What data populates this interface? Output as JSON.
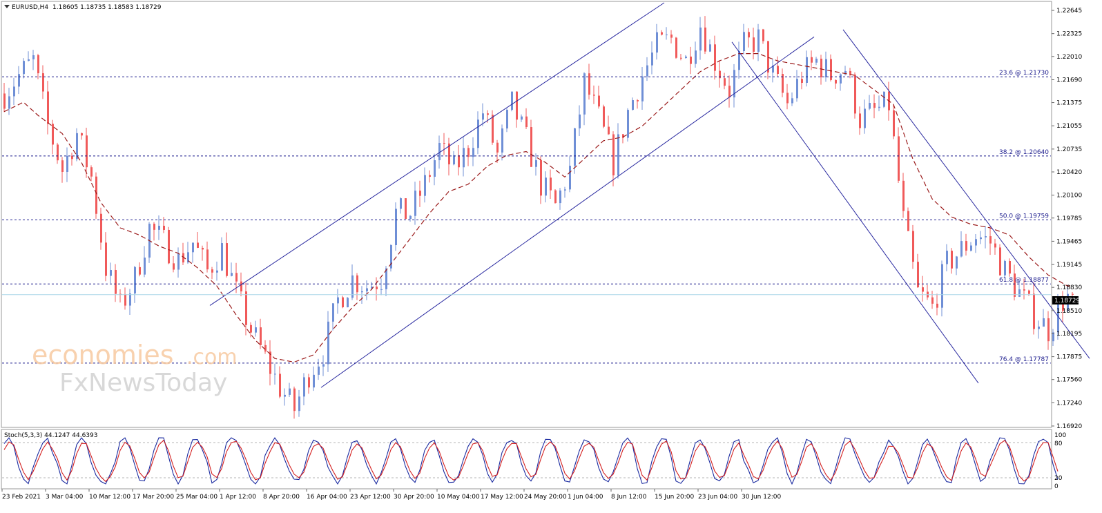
{
  "header": {
    "symbol": "EURUSD,H4",
    "ohlc": "1.18605 1.18735 1.18583 1.18729",
    "menu_icon": "triangle-down-icon"
  },
  "watermark": {
    "line1": "economies",
    "line1_suffix": ".com",
    "line2": "FxNewsToday"
  },
  "stoch": {
    "label": "Stoch(5,3,3) 44.1247 44.6393",
    "levels": [
      "100",
      "80",
      "20",
      "0"
    ]
  },
  "colors": {
    "bull": "#6f8fd6",
    "bear": "#f05a5a",
    "ma": "#9b1b1b",
    "channel": "#2a2aa0",
    "level": "#1a1a8c",
    "current": "#a9d6e8",
    "k": "#1a2aa0",
    "d": "#d42020"
  },
  "chart_data": {
    "type": "candlestick",
    "symbol": "EURUSD",
    "timeframe": "H4",
    "last_price": "1.18729",
    "ylim": [
      1.1692,
      1.2275
    ],
    "y_ticks": [
      "1.22645",
      "1.22325",
      "1.22010",
      "1.21690",
      "1.21375",
      "1.21055",
      "1.20735",
      "1.20420",
      "1.20100",
      "1.19785",
      "1.19465",
      "1.19145",
      "1.18830",
      "1.18510",
      "1.18195",
      "1.17875",
      "1.17560",
      "1.17240",
      "1.16920"
    ],
    "x_ticks": [
      "23 Feb 2021",
      "3 Mar 04:00",
      "10 Mar 12:00",
      "17 Mar 20:00",
      "25 Mar 04:00",
      "1 Apr 12:00",
      "8 Apr 20:00",
      "16 Apr 04:00",
      "23 Apr 12:00",
      "30 Apr 20:00",
      "10 May 04:00",
      "17 May 12:00",
      "24 May 20:00",
      "1 Jun 04:00",
      "8 Jun 12:00",
      "15 Jun 20:00",
      "23 Jun 04:00",
      "30 Jun 12:00"
    ],
    "fib_levels": [
      {
        "label": "23.6 @ 1.21730",
        "value": 1.2173
      },
      {
        "label": "38.2 @ 1.20640",
        "value": 1.2064
      },
      {
        "label": "50.0 @ 1.19759",
        "value": 1.19759
      },
      {
        "label": "61.8 @ 1.18877",
        "value": 1.18877
      },
      {
        "label": "76.4 @ 1.17787",
        "value": 1.17787
      }
    ],
    "price_path_bars": [
      [
        0,
        1.215
      ],
      [
        3,
        1.2175
      ],
      [
        6,
        1.2195
      ],
      [
        9,
        1.2105
      ],
      [
        12,
        1.2045
      ],
      [
        15,
        1.2095
      ],
      [
        18,
        1.2035
      ],
      [
        21,
        1.191
      ],
      [
        24,
        1.1855
      ],
      [
        27,
        1.1895
      ],
      [
        30,
        1.1965
      ],
      [
        33,
        1.1945
      ],
      [
        36,
        1.192
      ],
      [
        39,
        1.1945
      ],
      [
        42,
        1.1905
      ],
      [
        45,
        1.1935
      ],
      [
        48,
        1.1875
      ],
      [
        51,
        1.1825
      ],
      [
        54,
        1.1785
      ],
      [
        57,
        1.1745
      ],
      [
        60,
        1.1715
      ],
      [
        63,
        1.1765
      ],
      [
        66,
        1.1795
      ],
      [
        69,
        1.1865
      ],
      [
        72,
        1.1895
      ],
      [
        75,
        1.1885
      ],
      [
        78,
        1.1895
      ],
      [
        81,
        1.1985
      ],
      [
        84,
        1.1985
      ],
      [
        87,
        1.2025
      ],
      [
        90,
        1.2075
      ],
      [
        93,
        1.2045
      ],
      [
        96,
        1.2075
      ],
      [
        99,
        1.2125
      ],
      [
        102,
        1.2065
      ],
      [
        105,
        1.2135
      ],
      [
        108,
        1.2085
      ],
      [
        111,
        1.2025
      ],
      [
        114,
        1.1995
      ],
      [
        117,
        1.2045
      ],
      [
        120,
        1.2165
      ],
      [
        123,
        1.2115
      ],
      [
        126,
        1.2055
      ],
      [
        129,
        1.2125
      ],
      [
        132,
        1.2175
      ],
      [
        135,
        1.2215
      ],
      [
        138,
        1.2225
      ],
      [
        141,
        1.2195
      ],
      [
        144,
        1.2245
      ],
      [
        147,
        1.2195
      ],
      [
        150,
        1.2155
      ],
      [
        153,
        1.2215
      ],
      [
        156,
        1.2225
      ],
      [
        159,
        1.2175
      ],
      [
        162,
        1.2135
      ],
      [
        165,
        1.2175
      ],
      [
        168,
        1.2195
      ],
      [
        171,
        1.2175
      ],
      [
        174,
        1.2185
      ],
      [
        177,
        1.2115
      ],
      [
        180,
        1.2125
      ],
      [
        183,
        1.2135
      ],
      [
        186,
        1.1975
      ],
      [
        189,
        1.1875
      ],
      [
        192,
        1.1855
      ],
      [
        195,
        1.1915
      ],
      [
        198,
        1.1935
      ],
      [
        201,
        1.1955
      ],
      [
        204,
        1.1945
      ],
      [
        207,
        1.1905
      ],
      [
        210,
        1.1875
      ],
      [
        213,
        1.1845
      ],
      [
        216,
        1.1825
      ],
      [
        219,
        1.1865
      ],
      [
        221,
        1.1873
      ]
    ],
    "ma_path_bars": [
      [
        0,
        1.2125
      ],
      [
        4,
        1.2138
      ],
      [
        7,
        1.212
      ],
      [
        12,
        1.2095
      ],
      [
        16,
        1.2055
      ],
      [
        20,
        1.2
      ],
      [
        24,
        1.1965
      ],
      [
        28,
        1.1955
      ],
      [
        32,
        1.194
      ],
      [
        36,
        1.193
      ],
      [
        40,
        1.191
      ],
      [
        44,
        1.1885
      ],
      [
        48,
        1.1845
      ],
      [
        52,
        1.181
      ],
      [
        56,
        1.1785
      ],
      [
        60,
        1.178
      ],
      [
        64,
        1.179
      ],
      [
        68,
        1.1825
      ],
      [
        72,
        1.1855
      ],
      [
        76,
        1.188
      ],
      [
        80,
        1.1915
      ],
      [
        84,
        1.195
      ],
      [
        88,
        1.1985
      ],
      [
        92,
        1.2015
      ],
      [
        96,
        1.2025
      ],
      [
        100,
        1.205
      ],
      [
        104,
        1.2065
      ],
      [
        108,
        1.207
      ],
      [
        112,
        1.2055
      ],
      [
        116,
        1.2035
      ],
      [
        120,
        1.206
      ],
      [
        124,
        1.2085
      ],
      [
        128,
        1.209
      ],
      [
        132,
        1.2105
      ],
      [
        136,
        1.213
      ],
      [
        140,
        1.2155
      ],
      [
        144,
        1.218
      ],
      [
        148,
        1.2195
      ],
      [
        152,
        1.2205
      ],
      [
        156,
        1.2205
      ],
      [
        160,
        1.2195
      ],
      [
        164,
        1.219
      ],
      [
        168,
        1.2185
      ],
      [
        172,
        1.218
      ],
      [
        176,
        1.2175
      ],
      [
        180,
        1.2155
      ],
      [
        184,
        1.2135
      ],
      [
        188,
        1.206
      ],
      [
        192,
        1.2005
      ],
      [
        196,
        1.198
      ],
      [
        200,
        1.197
      ],
      [
        204,
        1.1965
      ],
      [
        208,
        1.1955
      ],
      [
        212,
        1.1925
      ],
      [
        216,
        1.19
      ],
      [
        220,
        1.1885
      ]
    ],
    "channel_lines": [
      {
        "from": [
          43,
          1.1858
        ],
        "to": [
          137,
          1.2275
        ]
      },
      {
        "from": [
          66,
          1.1745
        ],
        "to": [
          168,
          1.2228
        ]
      },
      {
        "from": [
          151,
          1.2221
        ],
        "to": [
          202,
          1.1751
        ]
      },
      {
        "from": [
          174,
          1.2238
        ],
        "to": [
          225,
          1.1785
        ]
      }
    ]
  }
}
